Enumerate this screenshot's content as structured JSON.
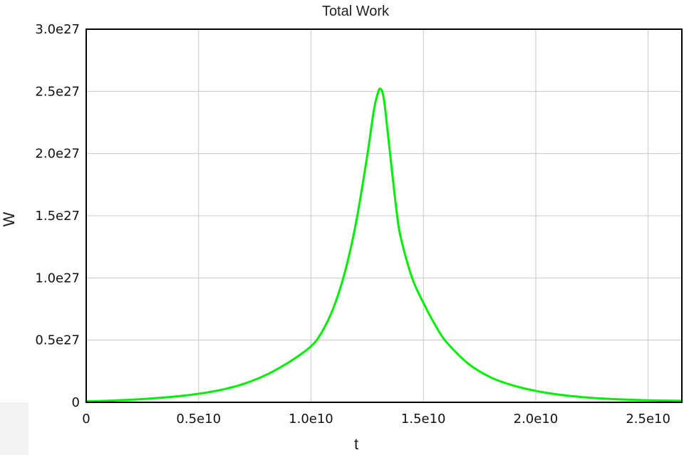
{
  "chart_data": {
    "type": "line",
    "title": "Total Work",
    "xlabel": "t",
    "ylabel": "W",
    "xlim": [
      0,
      26500000000
    ],
    "ylim": [
      0,
      3e+27
    ],
    "x_ticks": [
      0,
      5000000000,
      10000000000,
      15000000000,
      20000000000,
      25000000000
    ],
    "x_tick_labels": [
      "0",
      "0.5e10",
      "1.0e10",
      "1.5e10",
      "2.0e10",
      "2.5e10"
    ],
    "y_ticks": [
      0,
      5e+26,
      1e+27,
      1.5e+27,
      2e+27,
      2.5e+27,
      3e+27
    ],
    "y_tick_labels": [
      "0",
      "0.5e27",
      "1.0e27",
      "1.5e27",
      "2.0e27",
      "2.5e27",
      "3.0e27"
    ],
    "grid": true,
    "series": [
      {
        "color": "#00ee00",
        "x": [
          0,
          1000000000,
          2000000000,
          3000000000,
          4000000000,
          5000000000,
          6000000000,
          7000000000,
          8000000000,
          9000000000,
          10000000000,
          10500000000,
          11000000000,
          11500000000,
          12000000000,
          12500000000,
          12800000000,
          13000000000,
          13100000000,
          13200000000,
          13300000000,
          13500000000,
          13800000000,
          14000000000,
          14500000000,
          15000000000,
          15500000000,
          16000000000,
          17000000000,
          18000000000,
          19000000000,
          20000000000,
          21000000000,
          22000000000,
          23000000000,
          24000000000,
          25000000000,
          26000000000,
          26500000000
        ],
        "values": [
          7e+24,
          1.3e+25,
          2.1e+25,
          3.2e+25,
          4.7e+25,
          6.9e+25,
          1e+26,
          1.48e+26,
          2.2e+26,
          3.2e+26,
          4.5e+26,
          5.7e+26,
          7.6e+26,
          1.04e+27,
          1.44e+27,
          1.98e+27,
          2.35e+27,
          2.5e+27,
          2.52e+27,
          2.48e+27,
          2.36e+27,
          2.03e+27,
          1.55e+27,
          1.32e+27,
          1e+27,
          8e+26,
          6.3e+26,
          4.9e+26,
          3.1e+26,
          2e+26,
          1.35e+26,
          9.2e+25,
          6.2e+25,
          4.3e+25,
          3e+25,
          2.2e+25,
          1.6e+25,
          1.3e+25,
          1.2e+25
        ]
      }
    ]
  }
}
